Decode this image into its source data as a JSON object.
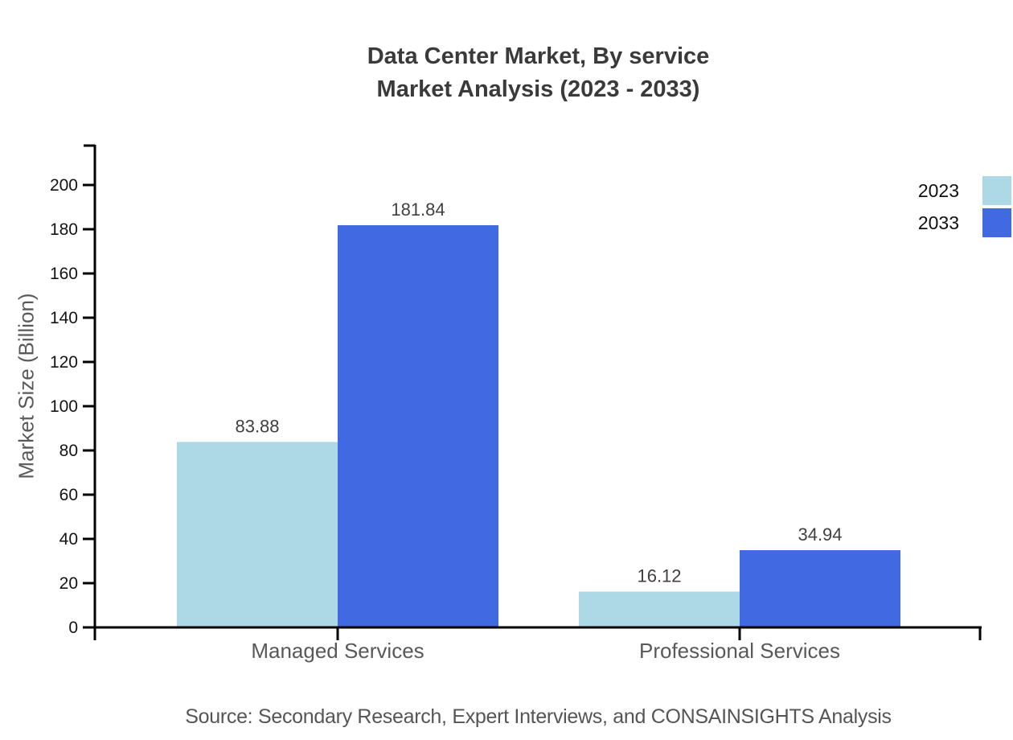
{
  "title": {
    "line1": "Data Center Market, By service",
    "line2": "Market Analysis (2023 - 2033)"
  },
  "source_text": "Source: Secondary Research, Expert Interviews, and CONSAINSIGHTS Analysis",
  "chart_data": {
    "type": "bar",
    "title": "Data Center Market, By service Market Analysis (2023 - 2033)",
    "categories": [
      "Managed Services",
      "Professional Services"
    ],
    "series": [
      {
        "name": "2023",
        "color": "#ADD8E6",
        "values": [
          83.88,
          16.12
        ]
      },
      {
        "name": "2033",
        "color": "#4169E1",
        "values": [
          181.84,
          34.94
        ]
      }
    ],
    "xlabel": "",
    "ylabel": "Market Size (Billion)",
    "ylim": [
      0,
      200
    ],
    "yticks": [
      0,
      20,
      40,
      60,
      80,
      100,
      120,
      140,
      160,
      180,
      200
    ],
    "grid": false,
    "legend_position": "top-right",
    "value_labels": true
  }
}
